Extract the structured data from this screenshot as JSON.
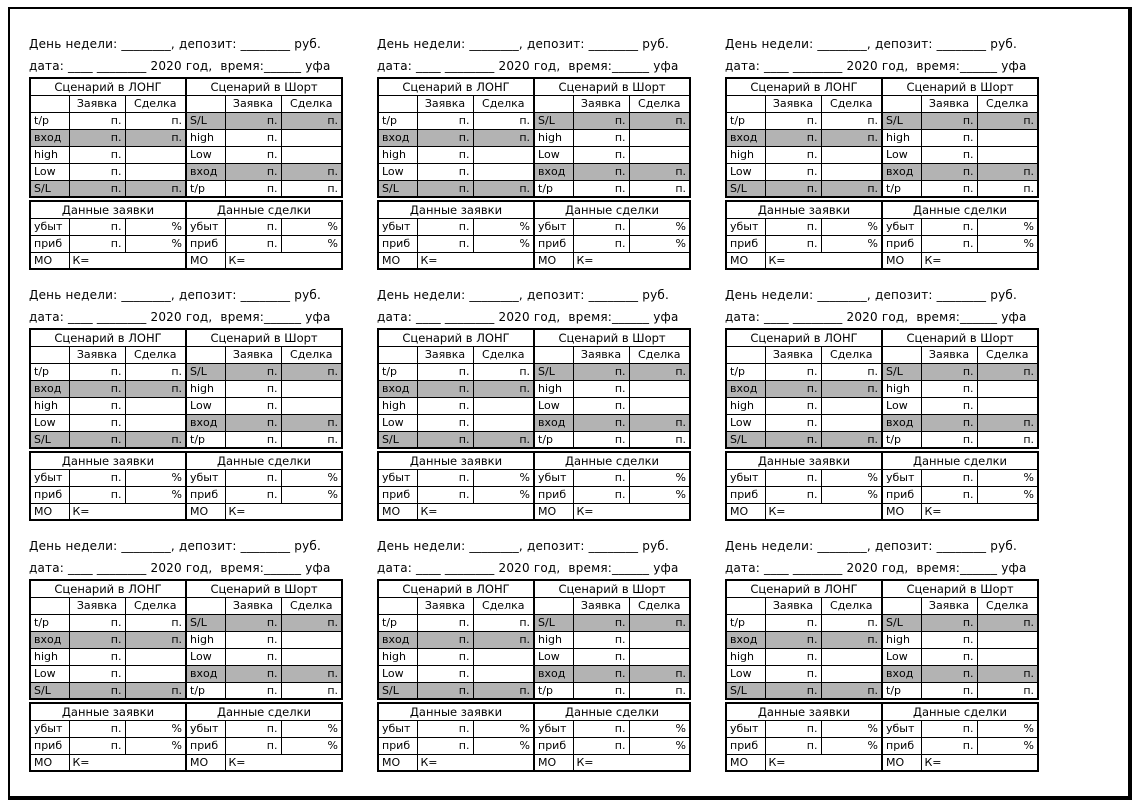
{
  "page": {
    "block_count": 9,
    "grid": {
      "rows": 3,
      "cols": 3
    },
    "colors": {
      "shaded_cell": "#b3b3b3",
      "border": "#000000",
      "page_bg": "#ffffff"
    }
  },
  "block": {
    "day_line": "День недели: ________, депозит: ________ руб.",
    "date_line": "дата: ____ ________ 2020 год,  время:______ уфа",
    "scenario_table": {
      "long_title": "Сценарий в ЛОНГ",
      "short_title": "Сценарий в Шорт",
      "order_col": "Заявка",
      "deal_col": "Сделка",
      "long_rows": [
        {
          "label": "t/p",
          "zayavka": "п.",
          "sdelka": "п.",
          "shaded": false
        },
        {
          "label": "вход",
          "zayavka": "п.",
          "sdelka": "п.",
          "shaded": true
        },
        {
          "label": "high",
          "zayavka": "п.",
          "sdelka": "",
          "shaded": false
        },
        {
          "label": "Low",
          "zayavka": "п.",
          "sdelka": "",
          "shaded": false
        },
        {
          "label": "S/L",
          "zayavka": "п.",
          "sdelka": "п.",
          "shaded": true
        }
      ],
      "short_rows": [
        {
          "label": "S/L",
          "zayavka": "п.",
          "sdelka": "п.",
          "shaded": true
        },
        {
          "label": "high",
          "zayavka": "п.",
          "sdelka": "",
          "shaded": false
        },
        {
          "label": "Low",
          "zayavka": "п.",
          "sdelka": "",
          "shaded": false
        },
        {
          "label": "вход",
          "zayavka": "п.",
          "sdelka": "п.",
          "shaded": true
        },
        {
          "label": "t/p",
          "zayavka": "п.",
          "sdelka": "п.",
          "shaded": false
        }
      ]
    },
    "data_table": {
      "order_title": "Данные заявки",
      "deal_title": "Данные сделки",
      "rows": [
        {
          "label": "убыт",
          "points": "п.",
          "percent": "%"
        },
        {
          "label": "приб",
          "points": "п.",
          "percent": "%"
        }
      ],
      "mo_label": "МО",
      "k_value": "К="
    }
  }
}
